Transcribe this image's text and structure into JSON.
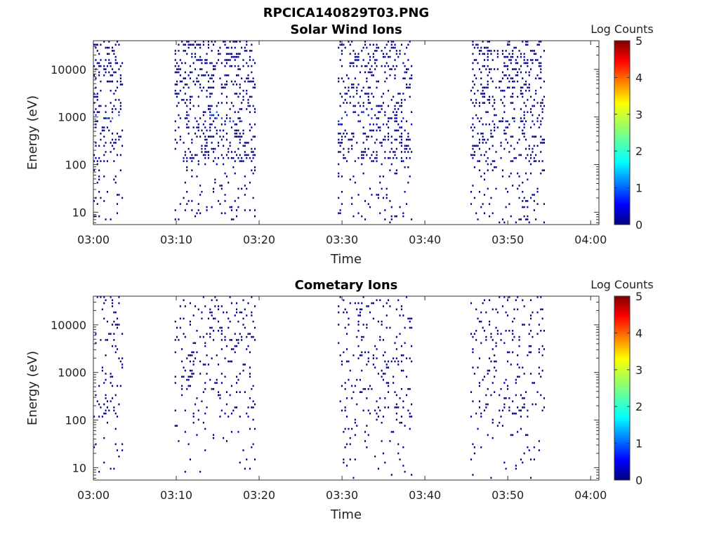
{
  "figure_title": "RPCICA140829T03.PNG",
  "colormap": [
    "#00007f",
    "#0000ff",
    "#007fff",
    "#00ffff",
    "#7fff7f",
    "#ffff00",
    "#ff7f00",
    "#ff0000",
    "#7f0000"
  ],
  "chart_data": [
    {
      "type": "heatmap",
      "title": "Solar Wind Ions",
      "xlabel": "Time",
      "ylabel": "Energy (eV)",
      "x_ticks": [
        "03:00",
        "03:10",
        "03:20",
        "03:30",
        "03:40",
        "03:50",
        "04:00"
      ],
      "xlim": [
        "03:00",
        "04:01"
      ],
      "y_scale": "log",
      "y_ticks": [
        "10",
        "100",
        "1000",
        "10000"
      ],
      "ylim": [
        5.5,
        40000
      ],
      "colorbar": {
        "label": "Log Counts",
        "ticks": [
          "0",
          "1",
          "2",
          "3",
          "4",
          "5"
        ],
        "range": [
          0,
          5
        ]
      },
      "bursts": [
        {
          "start": "03:00",
          "end": "03:03.5",
          "peak_energy_eV": 750,
          "peak_log_counts": 1.5
        },
        {
          "start": "03:09.8",
          "end": "03:19.5",
          "peak_energy_eV": 900,
          "peak_log_counts": 1.4
        },
        {
          "start": "03:29.5",
          "end": "03:38.5",
          "peak_energy_eV": 850,
          "peak_log_counts": 1.0
        },
        {
          "start": "03:45.5",
          "end": "03:54.5",
          "peak_energy_eV": 800,
          "peak_log_counts": 1.0
        }
      ],
      "cell_log_counts_range": [
        0,
        1.5
      ]
    },
    {
      "type": "heatmap",
      "title": "Cometary Ions",
      "xlabel": "Time",
      "ylabel": "Energy (eV)",
      "x_ticks": [
        "03:00",
        "03:10",
        "03:20",
        "03:30",
        "03:40",
        "03:50",
        "04:00"
      ],
      "xlim": [
        "03:00",
        "04:01"
      ],
      "y_scale": "log",
      "y_ticks": [
        "10",
        "100",
        "1000",
        "10000"
      ],
      "ylim": [
        5.5,
        40000
      ],
      "colorbar": {
        "label": "Log Counts",
        "ticks": [
          "0",
          "1",
          "2",
          "3",
          "4",
          "5"
        ],
        "range": [
          0,
          5
        ]
      },
      "bursts": [
        {
          "start": "03:00",
          "end": "03:03.5",
          "peak_energy_eV": 900,
          "peak_log_counts": 0.3
        },
        {
          "start": "03:09.8",
          "end": "03:19.5",
          "peak_energy_eV": 150,
          "peak_log_counts": 0.3
        },
        {
          "start": "03:29.5",
          "end": "03:38.5",
          "peak_energy_eV": 900,
          "peak_log_counts": 0.2
        },
        {
          "start": "03:45.5",
          "end": "03:54.5",
          "peak_energy_eV": 2000,
          "peak_log_counts": 0.2
        }
      ],
      "cell_log_counts_range": [
        0,
        0.3
      ]
    }
  ]
}
